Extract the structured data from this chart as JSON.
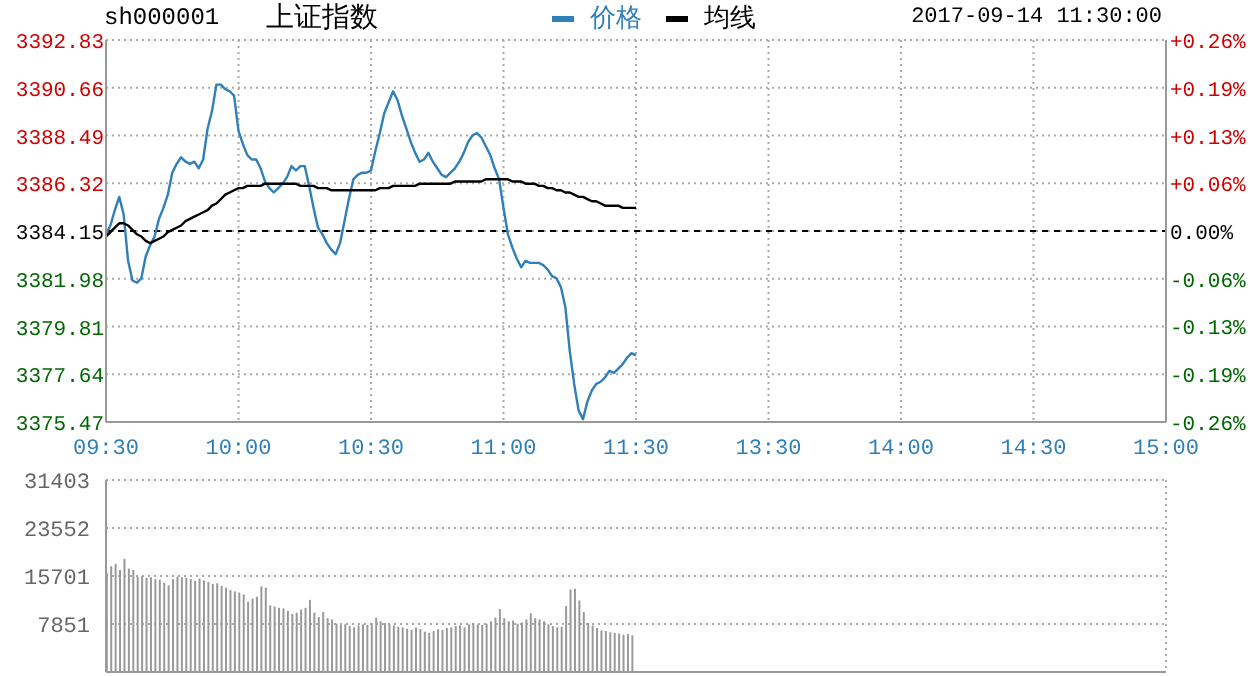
{
  "chart_data": [
    {
      "type": "line",
      "title": "上证指数",
      "subtitle": "sh000001",
      "annotations": [
        "2017-09-14 11:30:00"
      ],
      "legend": "top",
      "grid": true,
      "categories": [
        "09:30",
        null,
        null,
        null,
        null,
        null,
        null,
        null,
        null,
        null,
        null,
        null,
        null,
        null,
        null,
        null,
        null,
        null,
        null,
        null,
        null,
        null,
        null,
        null,
        null,
        null,
        null,
        null,
        null,
        null,
        "10:00",
        null,
        null,
        null,
        null,
        null,
        null,
        null,
        null,
        null,
        null,
        null,
        null,
        null,
        null,
        null,
        null,
        null,
        null,
        null,
        null,
        null,
        null,
        null,
        null,
        null,
        null,
        null,
        null,
        null,
        "10:30",
        null,
        null,
        null,
        null,
        null,
        null,
        null,
        null,
        null,
        null,
        null,
        null,
        null,
        null,
        null,
        null,
        null,
        null,
        null,
        null,
        null,
        null,
        null,
        null,
        null,
        null,
        null,
        null,
        null,
        "11:00",
        null,
        null,
        null,
        null,
        null,
        null,
        null,
        null,
        null,
        null,
        null,
        null,
        null,
        null,
        null,
        null,
        null,
        null,
        null,
        null,
        null,
        null,
        null,
        null,
        null,
        null,
        null,
        null,
        null,
        "11:30",
        null,
        null,
        null,
        null,
        null,
        null,
        null,
        null,
        null,
        null,
        null,
        null,
        null,
        null,
        null,
        null,
        null,
        null,
        null,
        null,
        null,
        null,
        null,
        null,
        null,
        null,
        null,
        null,
        null,
        "13:30",
        null,
        null,
        null,
        null,
        null,
        null,
        null,
        null,
        null,
        null,
        null,
        null,
        null,
        null,
        null,
        null,
        null,
        null,
        null,
        null,
        null,
        null,
        null,
        null,
        null,
        null,
        null,
        null,
        null,
        "14:00",
        null,
        null,
        null,
        null,
        null,
        null,
        null,
        null,
        null,
        null,
        null,
        null,
        null,
        null,
        null,
        null,
        null,
        null,
        null,
        null,
        null,
        null,
        null,
        null,
        null,
        null,
        null,
        null,
        null,
        "14:30",
        null,
        null,
        null,
        null,
        null,
        null,
        null,
        null,
        null,
        null,
        null,
        null,
        null,
        null,
        null,
        null,
        null,
        null,
        null,
        null,
        null,
        null,
        null,
        null,
        null,
        null,
        null,
        null,
        null,
        "15:00"
      ],
      "ylim": [
        3375.47,
        3392.83
      ],
      "yticks": [
        3375.47,
        3377.64,
        3379.81,
        3381.98,
        3384.15,
        3386.32,
        3388.49,
        3390.66,
        3392.83
      ],
      "y2lim": [
        -0.2565,
        0.2565
      ],
      "y2ticks": [
        {
          "value": -0.2565,
          "label": "-0.26%"
        },
        {
          "value": -0.1923,
          "label": "-0.19%"
        },
        {
          "value": -0.1282,
          "label": "-0.13%"
        },
        {
          "value": -0.0641,
          "label": "-0.06%"
        },
        {
          "value": 0,
          "label": "0.00%"
        },
        {
          "value": 0.0641,
          "label": "+0.06%"
        },
        {
          "value": 0.1282,
          "label": "+0.13%"
        },
        {
          "value": 0.1923,
          "label": "+0.19%"
        },
        {
          "value": 0.2565,
          "label": "+0.26%"
        }
      ],
      "ref_lines": [
        {
          "axis": "y",
          "value": 3384.15,
          "color": "#000000",
          "line_style": "dashed"
        }
      ],
      "series": [
        {
          "name": "价格",
          "color": "#2f7fb8",
          "values": [
            3384.0,
            3384.4,
            3385.1,
            3385.7,
            3384.9,
            3382.8,
            3381.9,
            3381.8,
            3382.0,
            3383.0,
            3383.5,
            3383.9,
            3384.7,
            3385.2,
            3385.8,
            3386.8,
            3387.2,
            3387.5,
            3387.3,
            3387.2,
            3387.3,
            3387.0,
            3387.4,
            3388.8,
            3389.6,
            3390.8,
            3390.8,
            3390.6,
            3390.5,
            3390.3,
            3388.7,
            3388.1,
            3387.6,
            3387.4,
            3387.4,
            3387.0,
            3386.4,
            3386.1,
            3385.9,
            3386.1,
            3386.3,
            3386.6,
            3387.1,
            3386.9,
            3387.1,
            3387.1,
            3386.2,
            3385.2,
            3384.3,
            3384.0,
            3383.6,
            3383.3,
            3383.1,
            3383.6,
            3384.6,
            3385.6,
            3386.5,
            3386.7,
            3386.8,
            3386.8,
            3386.9,
            3387.8,
            3388.6,
            3389.5,
            3390.0,
            3390.5,
            3390.1,
            3389.4,
            3388.8,
            3388.2,
            3387.7,
            3387.3,
            3387.4,
            3387.7,
            3387.3,
            3387.0,
            3386.7,
            3386.6,
            3386.8,
            3387.0,
            3387.3,
            3387.7,
            3388.2,
            3388.5,
            3388.6,
            3388.4,
            3388.0,
            3387.6,
            3387.0,
            3386.5,
            3385.2,
            3384.0,
            3383.4,
            3382.9,
            3382.5,
            3382.8,
            3382.7,
            3382.7,
            3382.7,
            3382.6,
            3382.4,
            3382.1,
            3382.0,
            3381.6,
            3380.7,
            3378.7,
            3377.2,
            3376.0,
            3375.6,
            3376.4,
            3376.9,
            3377.2,
            3377.3,
            3377.5,
            3377.8,
            3377.7,
            3377.9,
            3378.1,
            3378.4,
            3378.6,
            3378.5,
            null,
            null,
            null,
            null,
            null,
            null,
            null,
            null,
            null,
            null,
            null,
            null,
            null,
            null,
            null,
            null,
            null,
            null,
            null,
            null,
            null,
            null,
            null,
            null,
            null,
            null,
            null,
            null,
            null,
            null,
            null,
            null,
            null,
            null,
            null,
            null,
            null,
            null,
            null,
            null,
            null,
            null,
            null,
            null,
            null,
            null,
            null,
            null,
            null,
            null,
            null,
            null,
            null,
            null,
            null,
            null,
            null,
            null,
            null,
            null,
            null,
            null,
            null,
            null,
            null,
            null,
            null,
            null,
            null,
            null,
            null,
            null,
            null,
            null,
            null,
            null,
            null,
            null,
            null,
            null,
            null,
            null,
            null,
            null,
            null,
            null,
            null,
            null,
            null,
            null,
            null,
            null,
            null,
            null,
            null,
            null,
            null,
            null,
            null,
            null,
            null,
            null,
            null,
            null,
            null,
            null,
            null,
            null,
            null,
            null,
            null,
            null,
            null,
            null,
            null,
            null,
            null,
            null,
            null,
            null
          ]
        },
        {
          "name": "均线",
          "color": "#000000",
          "values": [
            3383.9,
            3384.1,
            3384.3,
            3384.5,
            3384.5,
            3384.4,
            3384.2,
            3384.0,
            3383.9,
            3383.7,
            3383.6,
            3383.7,
            3383.8,
            3383.9,
            3384.1,
            3384.2,
            3384.3,
            3384.4,
            3384.6,
            3384.7,
            3384.8,
            3384.9,
            3385.0,
            3385.1,
            3385.3,
            3385.4,
            3385.6,
            3385.8,
            3385.9,
            3386.0,
            3386.1,
            3386.1,
            3386.2,
            3386.2,
            3386.2,
            3386.2,
            3386.3,
            3386.3,
            3386.3,
            3386.3,
            3386.3,
            3386.3,
            3386.3,
            3386.3,
            3386.2,
            3386.2,
            3386.2,
            3386.2,
            3386.1,
            3386.1,
            3386.1,
            3386.0,
            3386.0,
            3386.0,
            3386.0,
            3386.0,
            3386.0,
            3386.0,
            3386.0,
            3386.0,
            3386.0,
            3386.0,
            3386.1,
            3386.1,
            3386.1,
            3386.2,
            3386.2,
            3386.2,
            3386.2,
            3386.2,
            3386.2,
            3386.3,
            3386.3,
            3386.3,
            3386.3,
            3386.3,
            3386.3,
            3386.3,
            3386.3,
            3386.4,
            3386.4,
            3386.4,
            3386.4,
            3386.4,
            3386.4,
            3386.4,
            3386.5,
            3386.5,
            3386.5,
            3386.5,
            3386.5,
            3386.5,
            3386.4,
            3386.4,
            3386.4,
            3386.3,
            3386.3,
            3386.3,
            3386.2,
            3386.2,
            3386.1,
            3386.1,
            3386.0,
            3386.0,
            3385.9,
            3385.9,
            3385.8,
            3385.7,
            3385.7,
            3385.6,
            3385.5,
            3385.5,
            3385.4,
            3385.3,
            3385.3,
            3385.3,
            3385.3,
            3385.2,
            3385.2,
            3385.2,
            3385.2,
            null,
            null,
            null,
            null,
            null,
            null,
            null,
            null,
            null,
            null,
            null,
            null,
            null,
            null,
            null,
            null,
            null,
            null,
            null,
            null,
            null,
            null,
            null,
            null,
            null,
            null,
            null,
            null,
            null,
            null,
            null,
            null,
            null,
            null,
            null,
            null,
            null,
            null,
            null,
            null,
            null,
            null,
            null,
            null,
            null,
            null,
            null,
            null,
            null,
            null,
            null,
            null,
            null,
            null,
            null,
            null,
            null,
            null,
            null,
            null,
            null,
            null,
            null,
            null,
            null,
            null,
            null,
            null,
            null,
            null,
            null,
            null,
            null,
            null,
            null,
            null,
            null,
            null,
            null,
            null,
            null,
            null,
            null,
            null,
            null,
            null,
            null,
            null,
            null,
            null,
            null,
            null,
            null,
            null,
            null,
            null,
            null,
            null,
            null,
            null,
            null,
            null,
            null,
            null,
            null,
            null,
            null,
            null,
            null,
            null,
            null,
            null,
            null,
            null,
            null,
            null,
            null,
            null,
            null,
            null
          ]
        }
      ]
    },
    {
      "type": "bar",
      "color": "#999999",
      "grid": true,
      "tick_labels": "y",
      "categories": [
        null,
        null,
        null,
        null,
        null,
        null,
        null,
        null,
        null,
        null,
        null,
        null,
        null,
        null,
        null,
        null,
        null,
        null,
        null,
        null,
        null,
        null,
        null,
        null,
        null,
        null,
        null,
        null,
        null,
        null,
        null,
        null,
        null,
        null,
        null,
        null,
        null,
        null,
        null,
        null,
        null,
        null,
        null,
        null,
        null,
        null,
        null,
        null,
        null,
        null,
        null,
        null,
        null,
        null,
        null,
        null,
        null,
        null,
        null,
        null,
        null,
        null,
        null,
        null,
        null,
        null,
        null,
        null,
        null,
        null,
        null,
        null,
        null,
        null,
        null,
        null,
        null,
        null,
        null,
        null,
        null,
        null,
        null,
        null,
        null,
        null,
        null,
        null,
        null,
        null,
        null,
        null,
        null,
        null,
        null,
        null,
        null,
        null,
        null,
        null,
        null,
        null,
        null,
        null,
        null,
        null,
        null,
        null,
        null,
        null,
        null,
        null,
        null,
        null,
        null,
        null,
        null,
        null,
        null,
        null,
        null,
        null,
        null,
        null,
        null,
        null,
        null,
        null,
        null,
        null,
        null,
        null,
        null,
        null,
        null,
        null,
        null,
        null,
        null,
        null,
        null,
        null,
        null,
        null,
        null,
        null,
        null,
        null,
        null,
        null,
        null,
        null,
        null,
        null,
        null,
        null,
        null,
        null,
        null,
        null,
        null,
        null,
        null,
        null,
        null,
        null,
        null,
        null,
        null,
        null,
        null,
        null,
        null,
        null,
        null,
        null,
        null,
        null,
        null,
        null,
        null,
        null,
        null,
        null,
        null,
        null,
        null,
        null,
        null,
        null,
        null,
        null,
        null,
        null,
        null,
        null,
        null,
        null,
        null,
        null,
        null,
        null,
        null,
        null,
        null,
        null,
        null,
        null,
        null,
        null,
        null,
        null,
        null,
        null,
        null,
        null,
        null,
        null,
        null,
        null,
        null,
        null,
        null,
        null,
        null,
        null,
        null,
        null,
        null,
        null,
        null,
        null,
        null,
        null,
        null,
        null,
        null,
        null,
        null,
        null,
        null
      ],
      "ylim": [
        0,
        31403
      ],
      "yticks": [
        7851,
        15701,
        23552,
        31403
      ],
      "values": [
        16200,
        17300,
        17700,
        16700,
        18500,
        16900,
        16700,
        15600,
        15700,
        15400,
        15500,
        15200,
        15100,
        14600,
        14200,
        15200,
        15600,
        15500,
        15400,
        15200,
        14900,
        15300,
        15000,
        14700,
        14400,
        14500,
        14100,
        13800,
        13400,
        13200,
        13000,
        12700,
        11500,
        12000,
        12300,
        14000,
        13800,
        10900,
        10700,
        10500,
        10400,
        10000,
        9500,
        9700,
        10200,
        10500,
        11800,
        9700,
        9000,
        9800,
        8800,
        8600,
        7900,
        7700,
        7800,
        7500,
        7300,
        7600,
        7800,
        7700,
        8000,
        8900,
        8300,
        8000,
        7800,
        7600,
        7400,
        7300,
        7100,
        6900,
        7300,
        7000,
        6600,
        6400,
        6700,
        7000,
        6900,
        7200,
        7300,
        7500,
        7600,
        7300,
        7800,
        8000,
        7800,
        7700,
        7900,
        8300,
        8900,
        10300,
        8800,
        8300,
        8400,
        7900,
        8100,
        8600,
        9600,
        8800,
        8600,
        8300,
        7800,
        7500,
        7300,
        7400,
        10800,
        13500,
        13600,
        11700,
        9800,
        8000,
        7600,
        7200,
        6800,
        6700,
        6500,
        6400,
        6300,
        6100,
        6200,
        6000,
        null,
        null,
        null,
        null,
        null,
        null,
        null,
        null,
        null,
        null,
        null,
        null,
        null,
        null,
        null,
        null,
        null,
        null,
        null,
        null,
        null,
        null,
        null,
        null,
        null,
        null,
        null,
        null,
        null,
        null,
        null,
        null,
        null,
        null,
        null,
        null,
        null,
        null,
        null,
        null,
        null,
        null,
        null,
        null,
        null,
        null,
        null,
        null,
        null,
        null,
        null,
        null,
        null,
        null,
        null,
        null,
        null,
        null,
        null,
        null,
        null,
        null,
        null,
        null,
        null,
        null,
        null,
        null,
        null,
        null,
        null,
        null,
        null,
        null,
        null,
        null,
        null,
        null,
        null,
        null,
        null,
        null,
        null,
        null,
        null,
        null,
        null,
        null,
        null,
        null,
        null,
        null,
        null,
        null,
        null,
        null,
        null,
        null,
        null,
        null,
        null,
        null,
        null,
        null,
        null,
        null,
        null,
        null,
        null,
        null,
        null,
        null,
        null,
        null,
        null,
        null,
        null,
        null,
        null,
        null,
        null
      ]
    }
  ]
}
